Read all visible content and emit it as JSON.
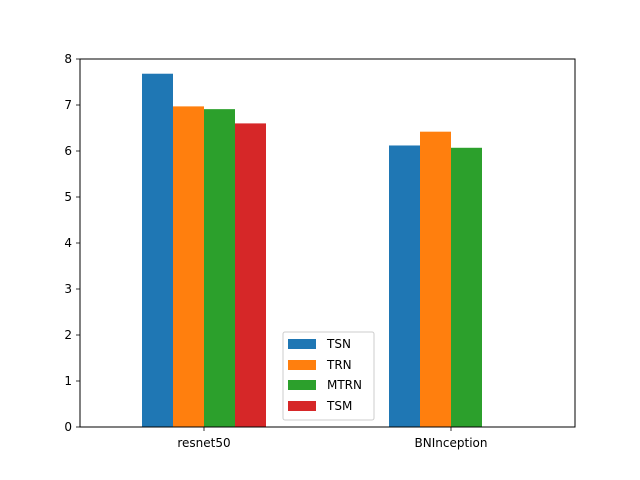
{
  "chart_data": {
    "type": "bar",
    "title": "",
    "xlabel": "",
    "ylabel": "",
    "categories": [
      "resnet50",
      "BNInception"
    ],
    "series": [
      {
        "name": "TSN",
        "color": "#1f77b4",
        "values": [
          7.68,
          6.12
        ]
      },
      {
        "name": "TRN",
        "color": "#ff7f0e",
        "values": [
          6.97,
          6.42
        ]
      },
      {
        "name": "MTRN",
        "color": "#2ca02c",
        "values": [
          6.91,
          6.07
        ]
      },
      {
        "name": "TSM",
        "color": "#d62728",
        "values": [
          6.6,
          null
        ]
      }
    ],
    "ylim": [
      0,
      8
    ],
    "yticks": [
      "0",
      "1",
      "2",
      "3",
      "4",
      "5",
      "6",
      "7",
      "8"
    ],
    "grid": false,
    "legend_position": "lower-center"
  }
}
